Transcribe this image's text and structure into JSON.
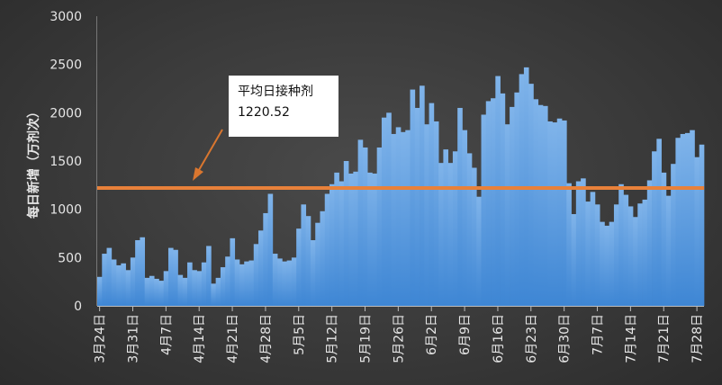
{
  "chart_data": {
    "type": "bar",
    "ylabel": "每日新增（万剂次）",
    "ylim": [
      0,
      3000
    ],
    "yticks": [
      0,
      500,
      1000,
      1500,
      2000,
      2500,
      3000
    ],
    "xtick_labels": [
      "3月24日",
      "3月31日",
      "4月7日",
      "4月14日",
      "4月21日",
      "4月28日",
      "5月5日",
      "5月12日",
      "5月19日",
      "5月26日",
      "6月2日",
      "6月9日",
      "6月16日",
      "6月23日",
      "6月30日",
      "7月7日",
      "7月14日",
      "7月21日",
      "7月28日"
    ],
    "xtick_every": 7,
    "start_date": "3月24日",
    "values": [
      300,
      540,
      600,
      480,
      420,
      440,
      370,
      500,
      680,
      710,
      290,
      310,
      280,
      260,
      360,
      600,
      580,
      320,
      290,
      450,
      370,
      360,
      450,
      620,
      230,
      290,
      400,
      510,
      700,
      480,
      430,
      460,
      470,
      640,
      780,
      960,
      1160,
      540,
      490,
      460,
      470,
      500,
      800,
      1050,
      930,
      680,
      860,
      980,
      1160,
      1260,
      1380,
      1290,
      1500,
      1370,
      1390,
      1720,
      1640,
      1380,
      1370,
      1640,
      1950,
      2000,
      1780,
      1850,
      1800,
      1820,
      2240,
      2050,
      2280,
      1880,
      2100,
      1910,
      1480,
      1620,
      1480,
      1600,
      2050,
      1820,
      1580,
      1430,
      1130,
      1980,
      2120,
      2150,
      2380,
      2200,
      1880,
      2060,
      2210,
      2400,
      2470,
      2300,
      2140,
      2080,
      2070,
      1910,
      1900,
      1940,
      1920,
      1270,
      950,
      1290,
      1320,
      1080,
      1180,
      1050,
      870,
      830,
      870,
      1050,
      1260,
      1150,
      1030,
      920,
      1060,
      1100,
      1300,
      1600,
      1730,
      1380,
      1140,
      1470,
      1740,
      1780,
      1790,
      1820,
      1540,
      1670
    ],
    "average_label": "平均日接种剂",
    "average_value": 1220.52,
    "bar_color": "#4a90d9",
    "average_line_color": "#e8813a",
    "arrow_color": "#d9762f"
  }
}
